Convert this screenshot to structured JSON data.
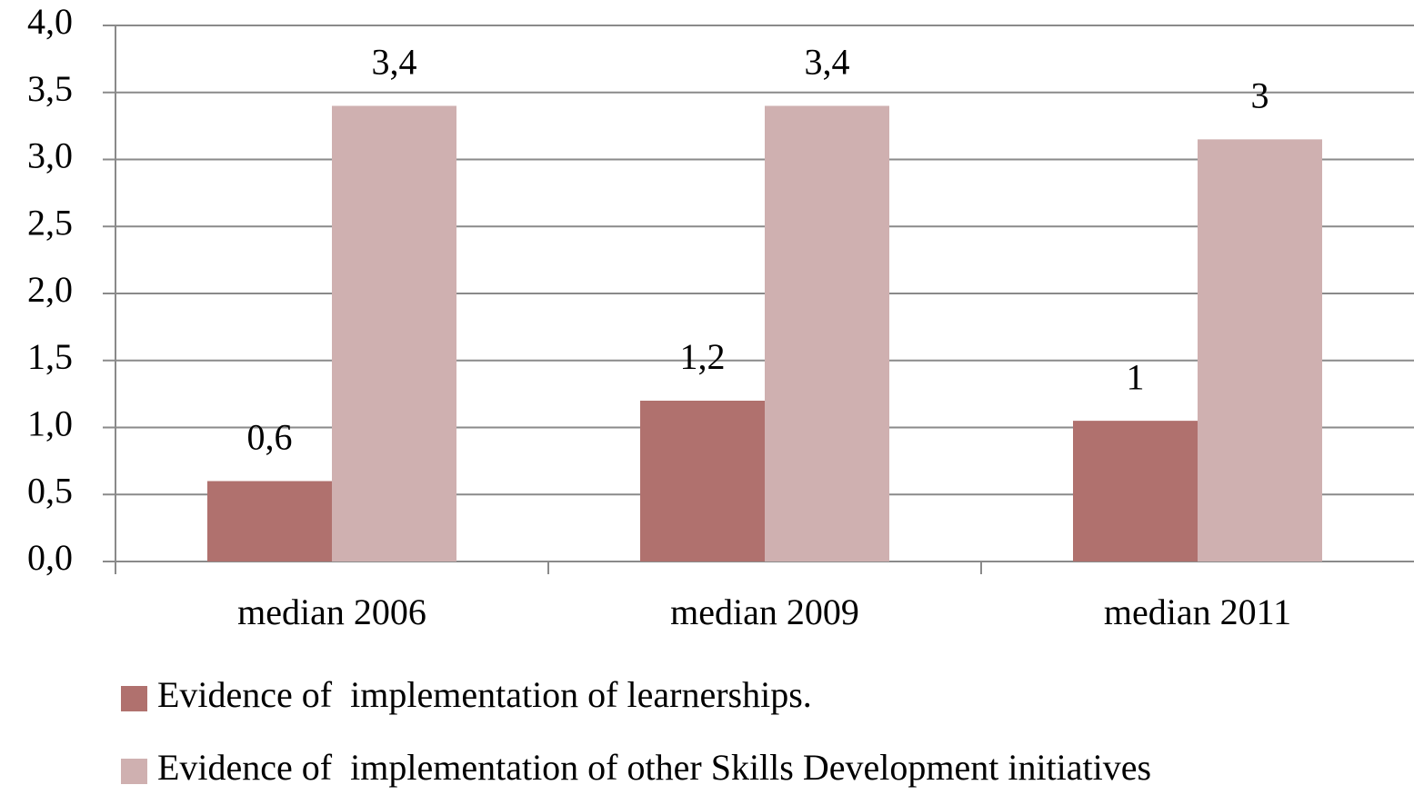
{
  "chart_data": {
    "type": "bar",
    "categories": [
      "median 2006",
      "median 2009",
      "median 2011"
    ],
    "series": [
      {
        "name": "Evidence of  implementation of learnerships.",
        "color": "#b0716e",
        "values": [
          0.6,
          1.2,
          1.05
        ],
        "value_labels": [
          "0,6",
          "1,2",
          "1"
        ]
      },
      {
        "name": "Evidence of  implementation of other Skills Development initiatives",
        "color": "#cfb0b0",
        "values": [
          3.4,
          3.4,
          3.15
        ],
        "value_labels": [
          "3,4",
          "3,4",
          "3"
        ]
      }
    ],
    "ylim": [
      0,
      4
    ],
    "yticks": [
      {
        "value": 0,
        "label": "0,0"
      },
      {
        "value": 0.5,
        "label": "0,5"
      },
      {
        "value": 1,
        "label": "1,0"
      },
      {
        "value": 1.5,
        "label": "1,5"
      },
      {
        "value": 2,
        "label": "2,0"
      },
      {
        "value": 2.5,
        "label": "2,5"
      },
      {
        "value": 3,
        "label": "3,0"
      },
      {
        "value": 3.5,
        "label": "3,5"
      },
      {
        "value": 4,
        "label": "4,0"
      }
    ],
    "grid": true,
    "legend": "bottom"
  }
}
